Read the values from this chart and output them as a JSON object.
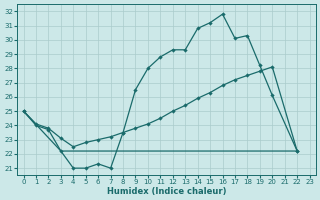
{
  "xlabel": "Humidex (Indice chaleur)",
  "bg_color": "#cce8e8",
  "grid_color": "#aacccc",
  "line_color": "#1a6b6b",
  "xlim": [
    -0.5,
    23.5
  ],
  "ylim": [
    20.5,
    32.5
  ],
  "xticks": [
    0,
    1,
    2,
    3,
    4,
    5,
    6,
    7,
    8,
    9,
    10,
    11,
    12,
    13,
    14,
    15,
    16,
    17,
    18,
    19,
    20,
    21,
    22,
    23
  ],
  "yticks": [
    21,
    22,
    23,
    24,
    25,
    26,
    27,
    28,
    29,
    30,
    31,
    32
  ],
  "line1_x": [
    0,
    1,
    2,
    3,
    4,
    5,
    6,
    7,
    8,
    9,
    10,
    11,
    12,
    13,
    14,
    15,
    16,
    17,
    18,
    19,
    20,
    22
  ],
  "line1_y": [
    25.0,
    24.0,
    23.7,
    22.2,
    21.0,
    21.0,
    21.3,
    21.0,
    23.5,
    26.5,
    28.0,
    28.8,
    29.3,
    29.3,
    30.8,
    31.2,
    31.8,
    30.1,
    30.3,
    28.2,
    26.1,
    22.2
  ],
  "line2_x": [
    0,
    1,
    2,
    3,
    4,
    5,
    6,
    7,
    8,
    9,
    10,
    11,
    12,
    13,
    14,
    15,
    16,
    17,
    18,
    19,
    20,
    22
  ],
  "line2_y": [
    25.0,
    24.1,
    23.8,
    23.1,
    22.5,
    22.8,
    23.0,
    23.2,
    23.5,
    23.8,
    24.1,
    24.5,
    25.0,
    25.4,
    25.9,
    26.3,
    26.8,
    27.2,
    27.5,
    27.8,
    28.1,
    22.2
  ],
  "line3_x": [
    0,
    3,
    19,
    20,
    22
  ],
  "line3_y": [
    25.0,
    22.2,
    22.2,
    22.2,
    22.2
  ]
}
